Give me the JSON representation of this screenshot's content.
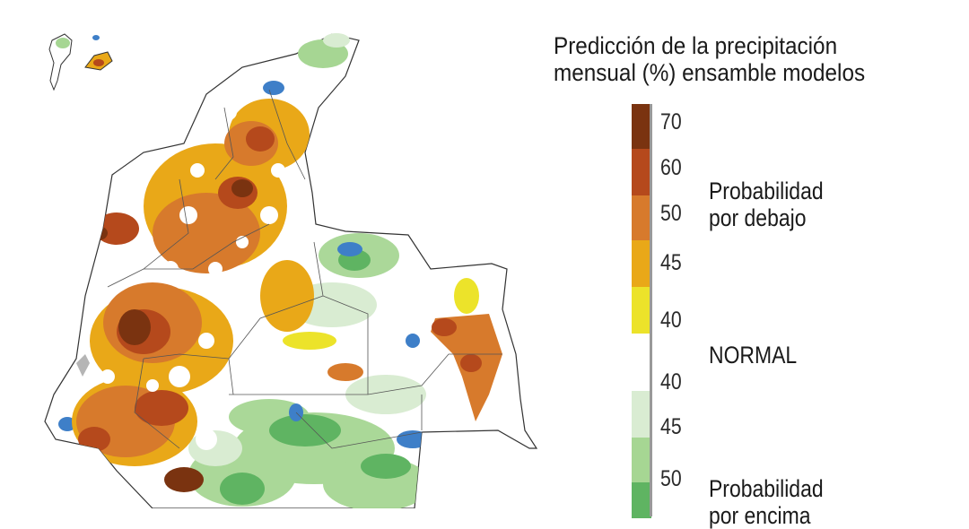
{
  "legend": {
    "title_line1": "Predicción de la precipitación",
    "title_line2": "mensual (%) ensamble modelos",
    "ticks": [
      "70",
      "60",
      "50",
      "45",
      "40",
      "40",
      "45",
      "50"
    ],
    "below_label_line1": "Probabilidad",
    "below_label_line2": "por debajo",
    "normal_label": "NORMAL",
    "above_label_line1": "Probabilidad",
    "above_label_line2": "por encima",
    "colors": {
      "below_70": "#7a3310",
      "below_60": "#b5491c",
      "below_50": "#d77a2c",
      "below_45": "#e9a818",
      "below_40": "#ece32a",
      "normal": "#ffffff",
      "above_45": "#d9ecd2",
      "above_50": "#a6d693",
      "above_60": "#5fb462",
      "above_70": "#3e7fc8"
    }
  }
}
